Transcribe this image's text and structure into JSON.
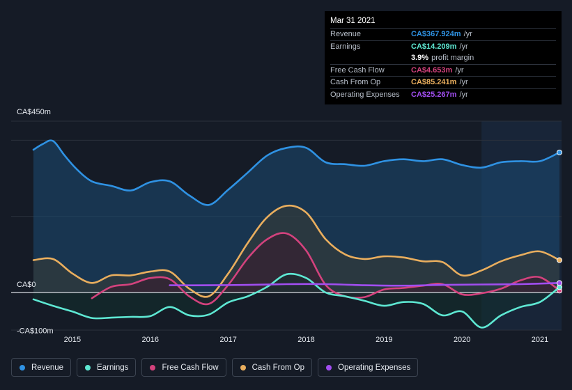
{
  "chart_data": {
    "type": "area",
    "currency_prefix": "CA$",
    "y_ticks": [
      {
        "value": 450,
        "label": "CA$450m"
      },
      {
        "value": 0,
        "label": "CA$0"
      },
      {
        "value": -100,
        "label": "-CA$100m"
      }
    ],
    "ylim": [
      -100,
      450
    ],
    "xlim": [
      2014.5,
      2021.25
    ],
    "x_ticks": [
      2015,
      2016,
      2017,
      2018,
      2019,
      2020,
      2021
    ],
    "highlight_start": 2020.25,
    "series": [
      {
        "name": "Revenue",
        "color": "#2f92e3",
        "fill": "#1c4a72",
        "points": [
          [
            2014.5,
            375
          ],
          [
            2014.62,
            390
          ],
          [
            2014.75,
            398
          ],
          [
            2014.9,
            360
          ],
          [
            2015.05,
            325
          ],
          [
            2015.25,
            292
          ],
          [
            2015.5,
            280
          ],
          [
            2015.75,
            268
          ],
          [
            2016.0,
            290
          ],
          [
            2016.25,
            292
          ],
          [
            2016.5,
            255
          ],
          [
            2016.75,
            230
          ],
          [
            2017.0,
            270
          ],
          [
            2017.25,
            315
          ],
          [
            2017.5,
            360
          ],
          [
            2017.75,
            380
          ],
          [
            2018.0,
            380
          ],
          [
            2018.25,
            342
          ],
          [
            2018.5,
            337
          ],
          [
            2018.75,
            333
          ],
          [
            2019.0,
            345
          ],
          [
            2019.25,
            350
          ],
          [
            2019.5,
            345
          ],
          [
            2019.75,
            350
          ],
          [
            2020.0,
            335
          ],
          [
            2020.25,
            328
          ],
          [
            2020.5,
            342
          ],
          [
            2020.75,
            345
          ],
          [
            2021.0,
            345
          ],
          [
            2021.25,
            368
          ]
        ]
      },
      {
        "name": "Earnings",
        "color": "#5ee8d3",
        "fill": "#12302e",
        "points": [
          [
            2014.5,
            -18
          ],
          [
            2014.75,
            -35
          ],
          [
            2015.0,
            -50
          ],
          [
            2015.25,
            -67
          ],
          [
            2015.5,
            -66
          ],
          [
            2015.75,
            -64
          ],
          [
            2016.0,
            -62
          ],
          [
            2016.25,
            -38
          ],
          [
            2016.5,
            -60
          ],
          [
            2016.75,
            -58
          ],
          [
            2017.0,
            -26
          ],
          [
            2017.25,
            -10
          ],
          [
            2017.5,
            15
          ],
          [
            2017.75,
            48
          ],
          [
            2018.0,
            38
          ],
          [
            2018.25,
            0
          ],
          [
            2018.5,
            -10
          ],
          [
            2018.75,
            -22
          ],
          [
            2019.0,
            -35
          ],
          [
            2019.25,
            -25
          ],
          [
            2019.5,
            -30
          ],
          [
            2019.75,
            -60
          ],
          [
            2020.0,
            -50
          ],
          [
            2020.25,
            -92
          ],
          [
            2020.5,
            -60
          ],
          [
            2020.75,
            -38
          ],
          [
            2021.0,
            -25
          ],
          [
            2021.25,
            14
          ]
        ]
      },
      {
        "name": "Free Cash Flow",
        "color": "#d3427d",
        "fill": "#3b1a2c",
        "points": [
          [
            2015.25,
            -15
          ],
          [
            2015.5,
            15
          ],
          [
            2015.75,
            22
          ],
          [
            2016.0,
            38
          ],
          [
            2016.25,
            35
          ],
          [
            2016.5,
            -10
          ],
          [
            2016.75,
            -30
          ],
          [
            2017.0,
            20
          ],
          [
            2017.25,
            90
          ],
          [
            2017.5,
            140
          ],
          [
            2017.75,
            155
          ],
          [
            2018.0,
            110
          ],
          [
            2018.25,
            20
          ],
          [
            2018.5,
            -10
          ],
          [
            2018.75,
            -12
          ],
          [
            2019.0,
            8
          ],
          [
            2019.25,
            12
          ],
          [
            2019.5,
            18
          ],
          [
            2019.75,
            22
          ],
          [
            2020.0,
            -5
          ],
          [
            2020.25,
            -2
          ],
          [
            2020.5,
            10
          ],
          [
            2020.75,
            32
          ],
          [
            2021.0,
            40
          ],
          [
            2021.25,
            5
          ]
        ]
      },
      {
        "name": "Cash From Op",
        "color": "#e9ae5e",
        "fill": "#3a3a33",
        "points": [
          [
            2014.5,
            85
          ],
          [
            2014.75,
            88
          ],
          [
            2015.0,
            50
          ],
          [
            2015.25,
            25
          ],
          [
            2015.5,
            45
          ],
          [
            2015.75,
            45
          ],
          [
            2016.0,
            55
          ],
          [
            2016.25,
            55
          ],
          [
            2016.5,
            10
          ],
          [
            2016.75,
            -10
          ],
          [
            2017.0,
            50
          ],
          [
            2017.25,
            130
          ],
          [
            2017.5,
            198
          ],
          [
            2017.75,
            228
          ],
          [
            2018.0,
            210
          ],
          [
            2018.25,
            140
          ],
          [
            2018.5,
            100
          ],
          [
            2018.75,
            88
          ],
          [
            2019.0,
            95
          ],
          [
            2019.25,
            92
          ],
          [
            2019.5,
            82
          ],
          [
            2019.75,
            80
          ],
          [
            2020.0,
            45
          ],
          [
            2020.25,
            58
          ],
          [
            2020.5,
            82
          ],
          [
            2020.75,
            98
          ],
          [
            2021.0,
            108
          ],
          [
            2021.25,
            85
          ]
        ]
      },
      {
        "name": "Operating Expenses",
        "color": "#a14ef0",
        "fill": "none",
        "points": [
          [
            2016.25,
            19
          ],
          [
            2016.75,
            19
          ],
          [
            2017.25,
            20
          ],
          [
            2017.75,
            22
          ],
          [
            2018.25,
            22
          ],
          [
            2018.75,
            19
          ],
          [
            2019.25,
            18
          ],
          [
            2019.75,
            20
          ],
          [
            2020.25,
            21
          ],
          [
            2020.75,
            22
          ],
          [
            2021.25,
            25
          ]
        ]
      }
    ]
  },
  "tooltip": {
    "date": "Mar 31 2021",
    "rows": [
      {
        "label": "Revenue",
        "value": "CA$367.924m",
        "unit": "/yr",
        "color": "#2f92e3"
      },
      {
        "label": "Earnings",
        "value": "CA$14.209m",
        "unit": "/yr",
        "color": "#5ee8d3"
      },
      {
        "label": "",
        "value": "3.9%",
        "unit": "profit margin",
        "color": "#ffffff"
      },
      {
        "label": "Free Cash Flow",
        "value": "CA$4.653m",
        "unit": "/yr",
        "color": "#d3427d"
      },
      {
        "label": "Cash From Op",
        "value": "CA$85.241m",
        "unit": "/yr",
        "color": "#e9ae5e"
      },
      {
        "label": "Operating Expenses",
        "value": "CA$25.267m",
        "unit": "/yr",
        "color": "#a14ef0"
      }
    ]
  },
  "legend": [
    {
      "label": "Revenue",
      "color": "#2f92e3"
    },
    {
      "label": "Earnings",
      "color": "#5ee8d3"
    },
    {
      "label": "Free Cash Flow",
      "color": "#d3427d"
    },
    {
      "label": "Cash From Op",
      "color": "#e9ae5e"
    },
    {
      "label": "Operating Expenses",
      "color": "#a14ef0"
    }
  ]
}
